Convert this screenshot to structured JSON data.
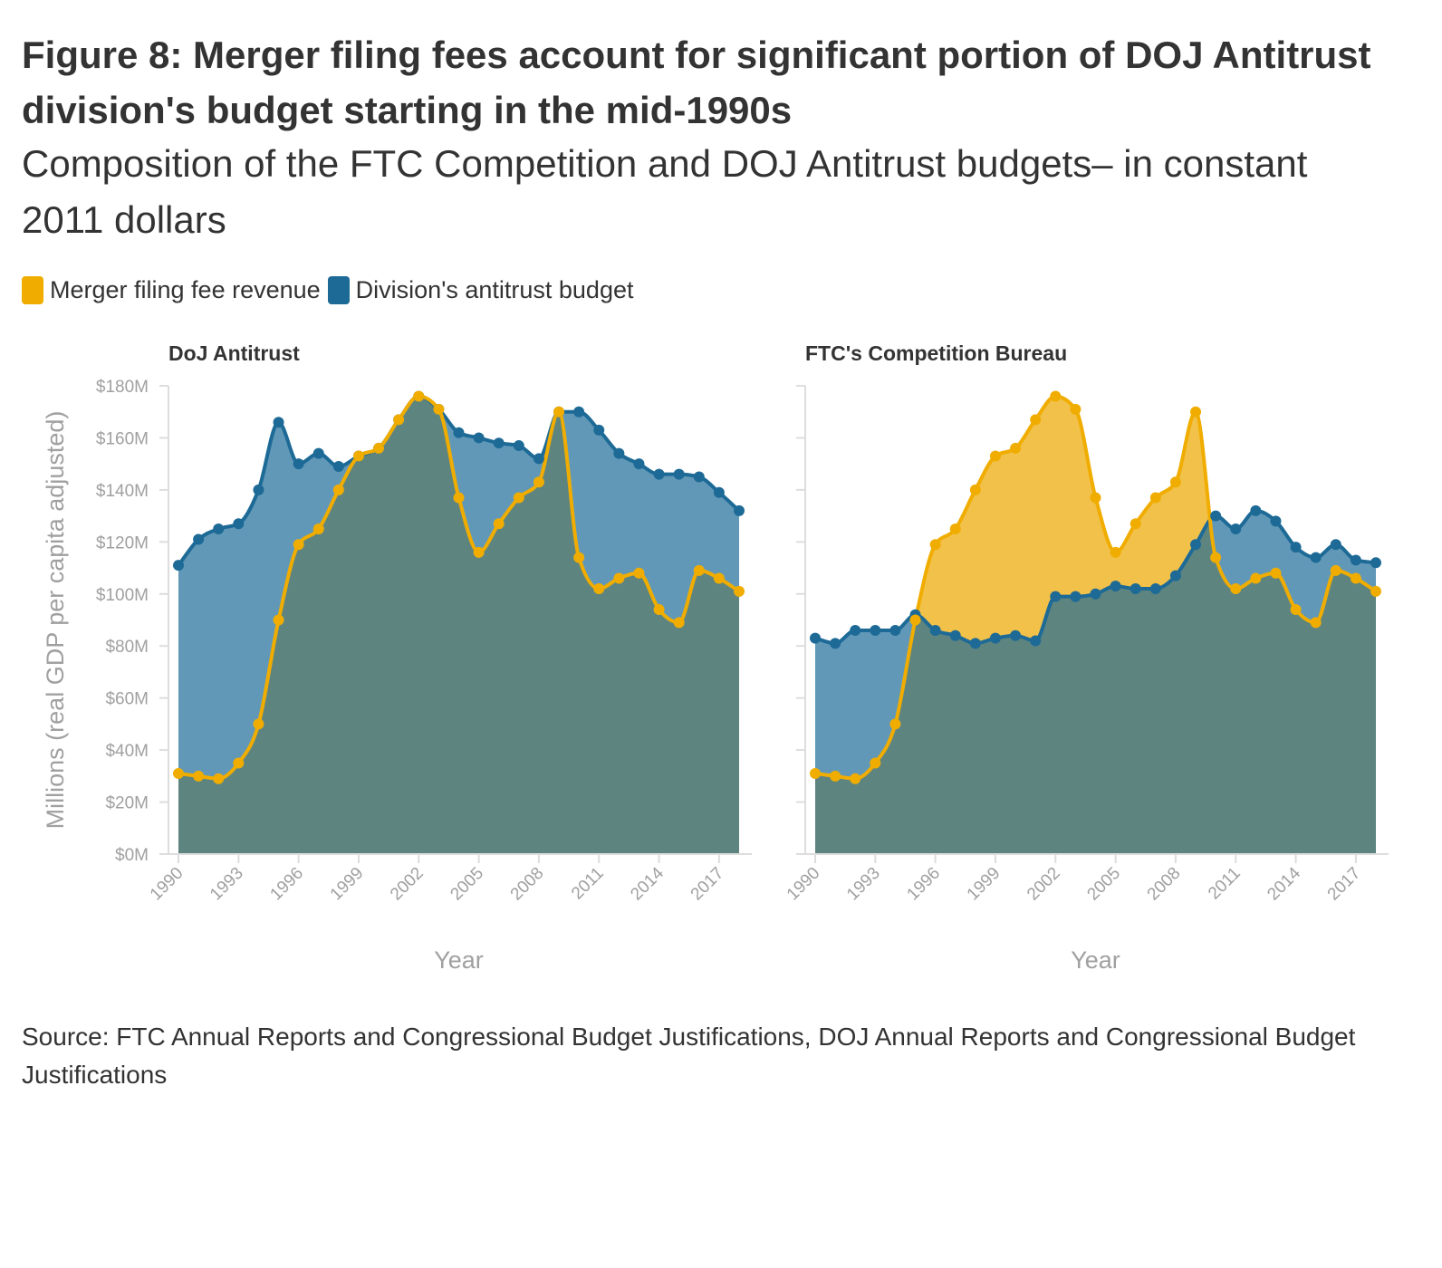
{
  "title": "Figure 8: Merger filing fees account for significant portion of DOJ Antitrust division's budget starting in the mid-1990s",
  "subtitle": "Composition of the FTC Competition and DOJ Antitrust budgets– in constant 2011 dollars",
  "legend": [
    {
      "label": "Merger filing fee revenue",
      "color": "#f0ad00"
    },
    {
      "label": "Division's antitrust budget",
      "color": "#1d6a96"
    }
  ],
  "source": "Source: FTC Annual Reports and Congressional Budget Justifications, DOJ Annual Reports and Congressional Budget Justifications",
  "colors": {
    "fee_line": "#f0ad00",
    "fee_fill": "#f2c14a",
    "budget_line": "#1d6a96",
    "budget_fill": "#6198b8",
    "overlap_fill": "#5e8480",
    "axis": "#dddddd",
    "tick_text": "#a0a0a0"
  },
  "chart_data": [
    {
      "type": "area",
      "title": "DoJ Antitrust",
      "xlabel": "Year",
      "ylabel": "Millions (real GDP per capita adjusted)",
      "ylim": [
        0,
        180
      ],
      "yticks": [
        0,
        20,
        40,
        60,
        80,
        100,
        120,
        140,
        160,
        180
      ],
      "ytick_labels": [
        "$0M",
        "$20M",
        "$40M",
        "$60M",
        "$80M",
        "$100M",
        "$120M",
        "$140M",
        "$160M",
        "$180M"
      ],
      "xticks": [
        1990,
        1993,
        1996,
        1999,
        2002,
        2005,
        2008,
        2011,
        2014,
        2017
      ],
      "x": [
        1990,
        1991,
        1992,
        1993,
        1994,
        1995,
        1996,
        1997,
        1998,
        1999,
        2000,
        2001,
        2002,
        2003,
        2004,
        2005,
        2006,
        2007,
        2008,
        2009,
        2010,
        2011,
        2012,
        2013,
        2014,
        2015,
        2016,
        2017,
        2018
      ],
      "series": [
        {
          "name": "Merger filing fee revenue",
          "values": [
            31,
            30,
            29,
            35,
            50,
            90,
            119,
            125,
            140,
            153,
            156,
            167,
            176,
            171,
            137,
            116,
            127,
            137,
            143,
            170,
            114,
            102,
            106,
            108,
            94,
            89,
            109,
            106,
            101
          ]
        },
        {
          "name": "Division's antitrust budget",
          "values": [
            111,
            121,
            125,
            127,
            140,
            166,
            150,
            154,
            149,
            153,
            156,
            167,
            176,
            171,
            162,
            160,
            158,
            157,
            152,
            170,
            170,
            163,
            154,
            150,
            146,
            146,
            145,
            139,
            132
          ]
        }
      ]
    },
    {
      "type": "area",
      "title": "FTC's Competition Bureau",
      "xlabel": "Year",
      "ylabel": "",
      "ylim": [
        0,
        180
      ],
      "xticks": [
        1990,
        1993,
        1996,
        1999,
        2002,
        2005,
        2008,
        2011,
        2014,
        2017
      ],
      "x": [
        1990,
        1991,
        1992,
        1993,
        1994,
        1995,
        1996,
        1997,
        1998,
        1999,
        2000,
        2001,
        2002,
        2003,
        2004,
        2005,
        2006,
        2007,
        2008,
        2009,
        2010,
        2011,
        2012,
        2013,
        2014,
        2015,
        2016,
        2017,
        2018
      ],
      "series": [
        {
          "name": "Merger filing fee revenue",
          "values": [
            31,
            30,
            29,
            35,
            50,
            90,
            119,
            125,
            140,
            153,
            156,
            167,
            176,
            171,
            137,
            116,
            127,
            137,
            143,
            170,
            114,
            102,
            106,
            108,
            94,
            89,
            109,
            106,
            101
          ]
        },
        {
          "name": "Division's antitrust budget",
          "values": [
            83,
            81,
            86,
            86,
            86,
            92,
            86,
            84,
            81,
            83,
            84,
            82,
            99,
            99,
            100,
            103,
            102,
            102,
            107,
            119,
            130,
            125,
            132,
            128,
            118,
            114,
            119,
            113,
            112
          ]
        }
      ]
    }
  ]
}
